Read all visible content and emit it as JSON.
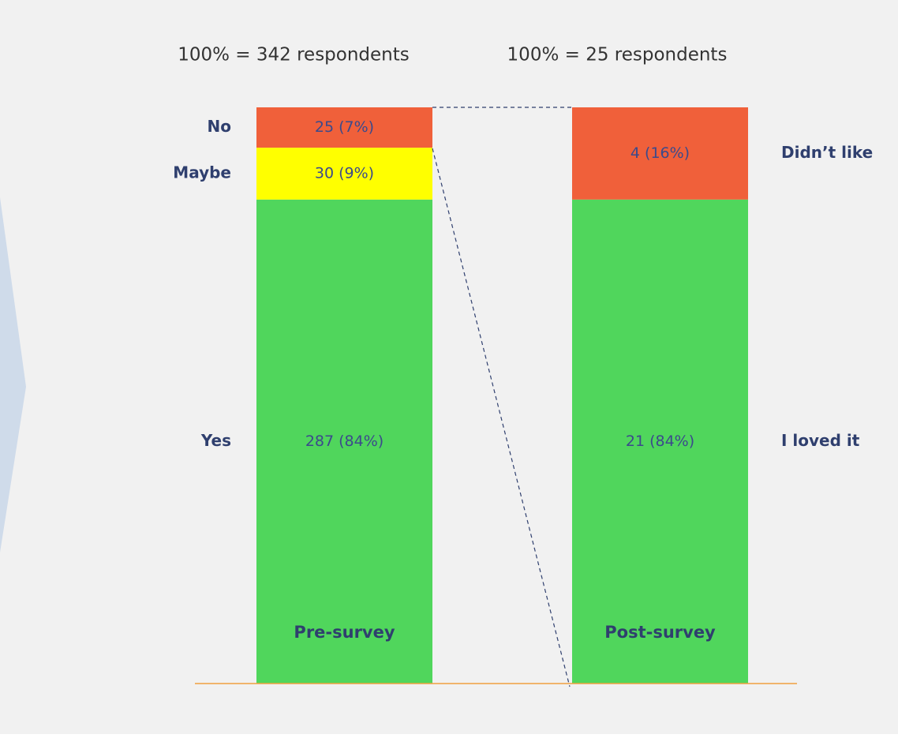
{
  "chart_data": {
    "type": "stacked_bar",
    "ylim": [
      0,
      100
    ],
    "columns": [
      {
        "name": "Pre-survey",
        "total_label": "100% = 342 respondents",
        "segments": [
          {
            "name": "Yes",
            "value": 84,
            "value_label": "287 (84%)",
            "color": "#50d65c"
          },
          {
            "name": "Maybe",
            "value": 9,
            "value_label": "30 (9%)",
            "color": "#ffff00"
          },
          {
            "name": "No",
            "value": 7,
            "value_label": "25 (7%)",
            "color": "#f0603a"
          }
        ]
      },
      {
        "name": "Post-survey",
        "total_label": "100% = 25 respondents",
        "segments": [
          {
            "name": "I loved it",
            "value": 84,
            "value_label": "21 (84%)",
            "color": "#50d65c"
          },
          {
            "name": "Didn’t like",
            "value": 16,
            "value_label": "4 (16%)",
            "color": "#f0603a"
          }
        ]
      }
    ]
  }
}
